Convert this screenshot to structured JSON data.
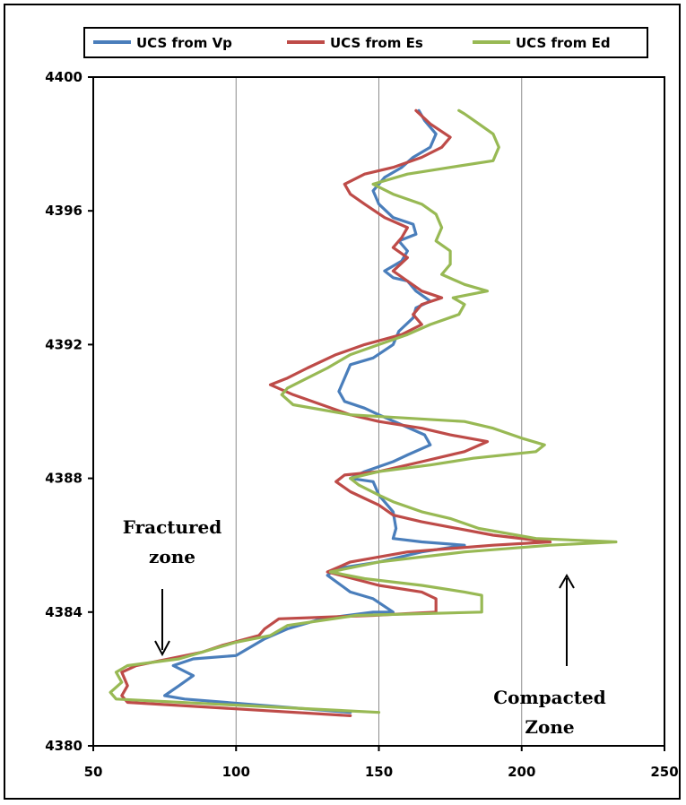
{
  "chart_data": {
    "type": "line",
    "orientation": "vertical-depth",
    "title": "",
    "xlabel": "",
    "ylabel": "",
    "xlim": [
      50,
      250
    ],
    "ylim": [
      4380,
      4400
    ],
    "x_ticks": [
      50,
      100,
      150,
      200,
      250
    ],
    "y_ticks": [
      4380,
      4384,
      4388,
      4392,
      4396,
      4400
    ],
    "grid": "vertical-major",
    "legend": {
      "position": "top",
      "entries": [
        "UCS from Vp",
        "UCS from Es",
        "UCS from Ed"
      ]
    },
    "series": [
      {
        "name": "UCS from Vp",
        "color": "#4a7ebb",
        "points": [
          [
            140,
            4381.0
          ],
          [
            82,
            4381.4
          ],
          [
            75,
            4381.5
          ],
          [
            80,
            4381.8
          ],
          [
            85,
            4382.1
          ],
          [
            78,
            4382.4
          ],
          [
            85,
            4382.6
          ],
          [
            100,
            4382.7
          ],
          [
            110,
            4383.2
          ],
          [
            118,
            4383.5
          ],
          [
            130,
            4383.8
          ],
          [
            148,
            4384.0
          ],
          [
            155,
            4384.0
          ],
          [
            148,
            4384.4
          ],
          [
            140,
            4384.6
          ],
          [
            132,
            4385.1
          ],
          [
            135,
            4385.3
          ],
          [
            150,
            4385.5
          ],
          [
            165,
            4385.8
          ],
          [
            180,
            4386.0
          ],
          [
            165,
            4386.1
          ],
          [
            155,
            4386.2
          ],
          [
            156,
            4386.5
          ],
          [
            155,
            4387.0
          ],
          [
            150,
            4387.5
          ],
          [
            148,
            4387.9
          ],
          [
            140,
            4388.0
          ],
          [
            145,
            4388.2
          ],
          [
            155,
            4388.5
          ],
          [
            160,
            4388.7
          ],
          [
            168,
            4389.0
          ],
          [
            166,
            4389.3
          ],
          [
            158,
            4389.6
          ],
          [
            150,
            4389.9
          ],
          [
            145,
            4390.1
          ],
          [
            138,
            4390.3
          ],
          [
            136,
            4390.6
          ],
          [
            138,
            4391.0
          ],
          [
            140,
            4391.4
          ],
          [
            148,
            4391.6
          ],
          [
            155,
            4392.0
          ],
          [
            157,
            4392.4
          ],
          [
            162,
            4392.8
          ],
          [
            163,
            4393.1
          ],
          [
            168,
            4393.3
          ],
          [
            163,
            4393.6
          ],
          [
            160,
            4393.9
          ],
          [
            155,
            4394.0
          ],
          [
            152,
            4394.2
          ],
          [
            158,
            4394.5
          ],
          [
            160,
            4394.8
          ],
          [
            157,
            4395.1
          ],
          [
            163,
            4395.3
          ],
          [
            162,
            4395.6
          ],
          [
            155,
            4395.8
          ],
          [
            150,
            4396.2
          ],
          [
            148,
            4396.6
          ],
          [
            152,
            4397.0
          ],
          [
            158,
            4397.3
          ],
          [
            162,
            4397.6
          ],
          [
            168,
            4397.9
          ],
          [
            170,
            4398.3
          ],
          [
            166,
            4398.7
          ],
          [
            164,
            4399.0
          ]
        ]
      },
      {
        "name": "UCS from Es",
        "color": "#be4b48",
        "points": [
          [
            140,
            4380.9
          ],
          [
            62,
            4381.3
          ],
          [
            60,
            4381.5
          ],
          [
            62,
            4381.8
          ],
          [
            60,
            4382.2
          ],
          [
            65,
            4382.4
          ],
          [
            88,
            4382.8
          ],
          [
            95,
            4383.0
          ],
          [
            108,
            4383.3
          ],
          [
            110,
            4383.5
          ],
          [
            115,
            4383.8
          ],
          [
            148,
            4383.9
          ],
          [
            170,
            4384.0
          ],
          [
            170,
            4384.4
          ],
          [
            165,
            4384.6
          ],
          [
            150,
            4384.8
          ],
          [
            132,
            4385.2
          ],
          [
            140,
            4385.5
          ],
          [
            160,
            4385.8
          ],
          [
            190,
            4386.0
          ],
          [
            210,
            4386.1
          ],
          [
            190,
            4386.3
          ],
          [
            165,
            4386.7
          ],
          [
            155,
            4386.9
          ],
          [
            150,
            4387.2
          ],
          [
            145,
            4387.4
          ],
          [
            140,
            4387.6
          ],
          [
            135,
            4387.9
          ],
          [
            138,
            4388.1
          ],
          [
            150,
            4388.2
          ],
          [
            165,
            4388.5
          ],
          [
            180,
            4388.8
          ],
          [
            188,
            4389.1
          ],
          [
            175,
            4389.3
          ],
          [
            165,
            4389.5
          ],
          [
            150,
            4389.7
          ],
          [
            140,
            4389.9
          ],
          [
            130,
            4390.2
          ],
          [
            120,
            4390.5
          ],
          [
            112,
            4390.8
          ],
          [
            118,
            4391.0
          ],
          [
            125,
            4391.3
          ],
          [
            135,
            4391.7
          ],
          [
            145,
            4392.0
          ],
          [
            158,
            4392.3
          ],
          [
            165,
            4392.6
          ],
          [
            162,
            4392.9
          ],
          [
            165,
            4393.2
          ],
          [
            172,
            4393.4
          ],
          [
            165,
            4393.6
          ],
          [
            160,
            4393.9
          ],
          [
            155,
            4394.2
          ],
          [
            160,
            4394.6
          ],
          [
            155,
            4394.9
          ],
          [
            158,
            4395.2
          ],
          [
            160,
            4395.5
          ],
          [
            152,
            4395.8
          ],
          [
            145,
            4396.2
          ],
          [
            140,
            4396.5
          ],
          [
            138,
            4396.8
          ],
          [
            145,
            4397.1
          ],
          [
            155,
            4397.3
          ],
          [
            165,
            4397.6
          ],
          [
            172,
            4397.9
          ],
          [
            175,
            4398.2
          ],
          [
            168,
            4398.6
          ],
          [
            163,
            4399.0
          ]
        ]
      },
      {
        "name": "UCS from Ed",
        "color": "#98b954",
        "points": [
          [
            150,
            4381.0
          ],
          [
            58,
            4381.4
          ],
          [
            56,
            4381.6
          ],
          [
            60,
            4381.9
          ],
          [
            58,
            4382.2
          ],
          [
            62,
            4382.4
          ],
          [
            80,
            4382.6
          ],
          [
            92,
            4382.9
          ],
          [
            100,
            4383.1
          ],
          [
            112,
            4383.3
          ],
          [
            118,
            4383.6
          ],
          [
            142,
            4383.9
          ],
          [
            186,
            4384.0
          ],
          [
            186,
            4384.5
          ],
          [
            180,
            4384.6
          ],
          [
            165,
            4384.8
          ],
          [
            145,
            4385.0
          ],
          [
            133,
            4385.2
          ],
          [
            150,
            4385.5
          ],
          [
            180,
            4385.8
          ],
          [
            210,
            4386.0
          ],
          [
            233,
            4386.1
          ],
          [
            205,
            4386.2
          ],
          [
            185,
            4386.5
          ],
          [
            175,
            4386.8
          ],
          [
            165,
            4387.0
          ],
          [
            155,
            4387.3
          ],
          [
            150,
            4387.5
          ],
          [
            143,
            4387.8
          ],
          [
            140,
            4388.0
          ],
          [
            150,
            4388.2
          ],
          [
            168,
            4388.4
          ],
          [
            183,
            4388.6
          ],
          [
            205,
            4388.8
          ],
          [
            208,
            4389.0
          ],
          [
            200,
            4389.2
          ],
          [
            190,
            4389.5
          ],
          [
            180,
            4389.7
          ],
          [
            140,
            4389.9
          ],
          [
            120,
            4390.2
          ],
          [
            116,
            4390.5
          ],
          [
            118,
            4390.7
          ],
          [
            125,
            4391.0
          ],
          [
            132,
            4391.3
          ],
          [
            140,
            4391.7
          ],
          [
            150,
            4392.0
          ],
          [
            160,
            4392.3
          ],
          [
            168,
            4392.6
          ],
          [
            178,
            4392.9
          ],
          [
            180,
            4393.2
          ],
          [
            176,
            4393.4
          ],
          [
            188,
            4393.6
          ],
          [
            180,
            4393.8
          ],
          [
            172,
            4394.1
          ],
          [
            175,
            4394.4
          ],
          [
            175,
            4394.8
          ],
          [
            170,
            4395.1
          ],
          [
            172,
            4395.5
          ],
          [
            170,
            4395.9
          ],
          [
            165,
            4396.2
          ],
          [
            155,
            4396.5
          ],
          [
            148,
            4396.8
          ],
          [
            160,
            4397.1
          ],
          [
            175,
            4397.3
          ],
          [
            190,
            4397.5
          ],
          [
            192,
            4397.9
          ],
          [
            190,
            4398.3
          ],
          [
            185,
            4398.6
          ],
          [
            180,
            4398.9
          ],
          [
            178,
            4399.0
          ]
        ]
      }
    ],
    "annotations": [
      {
        "text_lines": [
          "Fractured",
          "zone"
        ],
        "arrow": "down"
      },
      {
        "text_lines": [
          "Compacted",
          "Zone"
        ],
        "arrow": "up"
      }
    ]
  }
}
